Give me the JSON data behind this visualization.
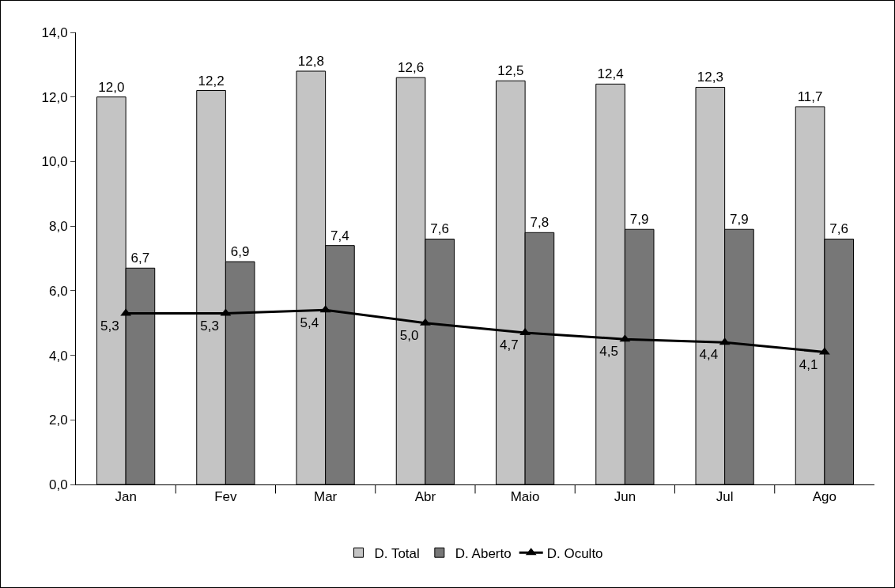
{
  "chart_data": {
    "type": "bar",
    "categories": [
      "Jan",
      "Fev",
      "Mar",
      "Abr",
      "Maio",
      "Jun",
      "Jul",
      "Ago"
    ],
    "series": [
      {
        "name": "D. Total",
        "color": "#c4c4c4",
        "values": [
          12.0,
          12.2,
          12.8,
          12.6,
          12.5,
          12.4,
          12.3,
          11.7
        ],
        "value_labels": [
          "12,0",
          "12,2",
          "12,8",
          "12,6",
          "12,5",
          "12,4",
          "12,3",
          "11,7"
        ]
      },
      {
        "name": "D. Aberto",
        "color": "#777777",
        "values": [
          6.7,
          6.9,
          7.4,
          7.6,
          7.8,
          7.9,
          7.9,
          7.6
        ],
        "value_labels": [
          "6,7",
          "6,9",
          "7,4",
          "7,6",
          "7,8",
          "7,9",
          "7,9",
          "7,6"
        ]
      },
      {
        "name": "D. Oculto",
        "type": "line",
        "color": "#000000",
        "values": [
          5.3,
          5.3,
          5.4,
          5.0,
          4.7,
          4.5,
          4.4,
          4.1
        ],
        "value_labels": [
          "5,3",
          "5,3",
          "5,4",
          "5,0",
          "4,7",
          "4,5",
          "4,4",
          "4,1"
        ]
      }
    ],
    "ylim": [
      0,
      14
    ],
    "yticks": [
      {
        "value": 0,
        "label": "0,0"
      },
      {
        "value": 2,
        "label": "2,0"
      },
      {
        "value": 4,
        "label": "4,0"
      },
      {
        "value": 6,
        "label": "6,0"
      },
      {
        "value": 8,
        "label": "8,0"
      },
      {
        "value": 10,
        "label": "10,0"
      },
      {
        "value": 12,
        "label": "12,0"
      },
      {
        "value": 14,
        "label": "14,0"
      }
    ],
    "grid": false,
    "legend": "bottom",
    "marker": "triangle",
    "line_style": "solid"
  }
}
